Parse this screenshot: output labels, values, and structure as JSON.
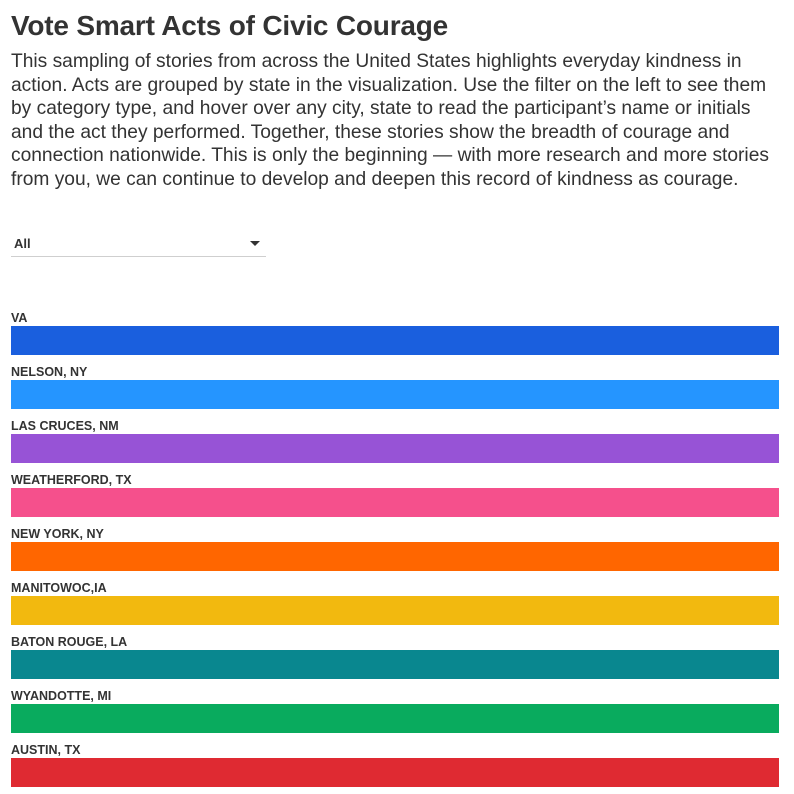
{
  "header": {
    "title": "Vote Smart Acts of Civic Courage",
    "description": "This sampling of stories from across the United States highlights everyday kindness in action. Acts are grouped by state in the visualization. Use the filter on the left to see them by category type, and hover over any city, state to read the participant’s name or initials and the act they performed. Together, these stories show the breadth of courage and connection nationwide. This is only the beginning — with more research and more stories from you, we can continue to develop and deepen this record of kindness as courage."
  },
  "filter": {
    "selected": "All",
    "icon": "chevron-down-icon"
  },
  "chart_data": {
    "type": "bar",
    "orientation": "horizontal",
    "grid": false,
    "categories": [
      "VA",
      "NELSON, NY",
      "LAS CRUCES, NM",
      "WEATHERFORD, TX",
      "NEW YORK, NY",
      "MANITOWOC,IA",
      "BATON ROUGE, LA",
      "WYANDOTTE, MI",
      "AUSTIN, TX"
    ],
    "values": [
      1,
      1,
      1,
      1,
      1,
      1,
      1,
      1,
      1
    ],
    "colors": [
      "#1a5fde",
      "#2595ff",
      "#9753d6",
      "#f5508c",
      "#ff6600",
      "#f2b90f",
      "#09878f",
      "#09ab5e",
      "#df2a32"
    ],
    "xlim": [
      0,
      1
    ]
  }
}
